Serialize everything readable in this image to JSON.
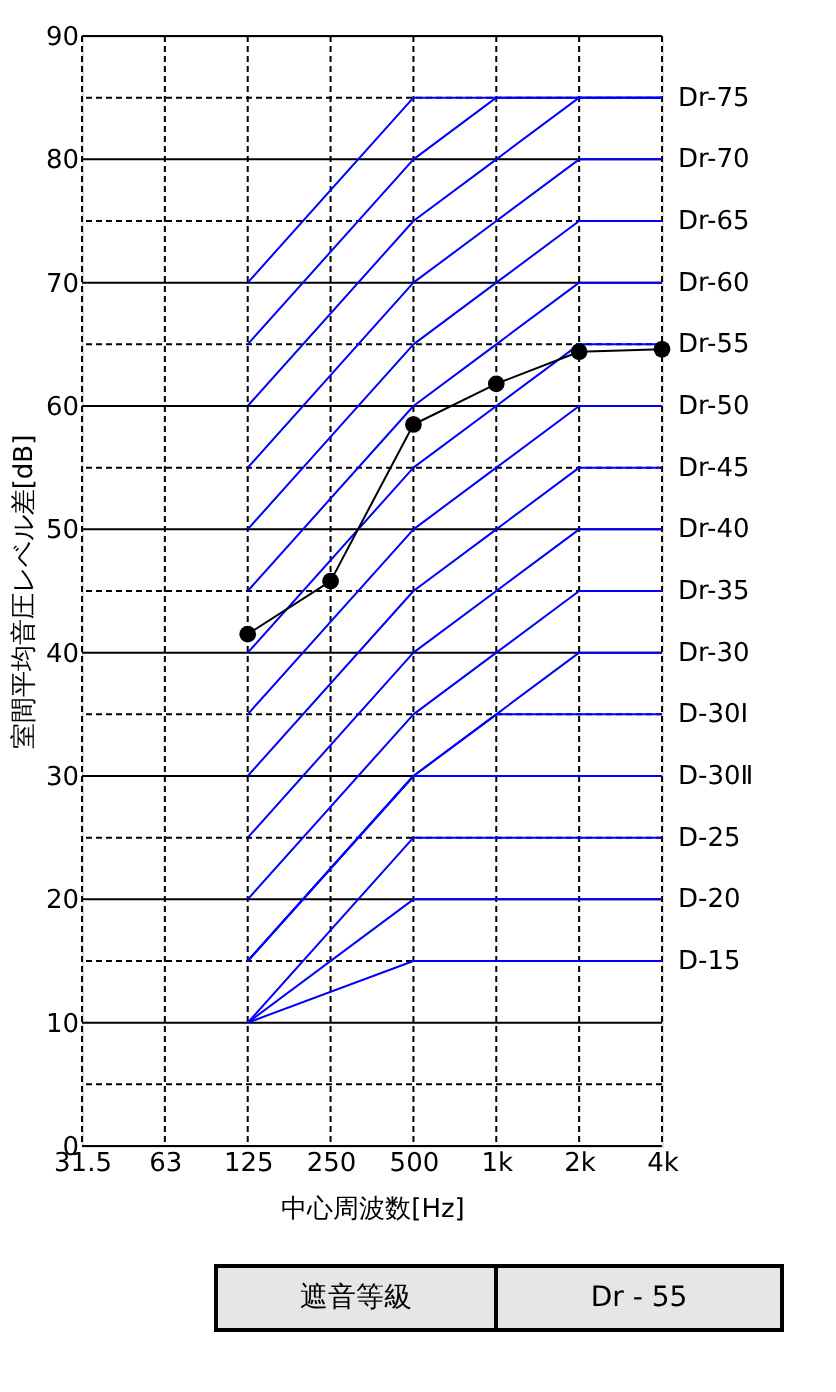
{
  "chart_data": {
    "type": "line",
    "xlabel": "中心周波数[Hz]",
    "ylabel": "室間平均音圧レベル差[dB]",
    "categories": [
      "31.5",
      "63",
      "125",
      "250",
      "500",
      "1k",
      "2k",
      "4k"
    ],
    "ylim": [
      0,
      90
    ],
    "yticks": [
      0,
      {
        "value": 5,
        "label": null
      },
      10,
      {
        "value": 15,
        "label": null
      },
      20,
      {
        "value": 25,
        "label": null
      },
      30,
      {
        "value": 35,
        "label": null
      },
      40,
      {
        "value": 45,
        "label": null
      },
      50,
      {
        "value": 55,
        "label": null
      },
      60,
      {
        "value": 65,
        "label": null
      },
      70,
      {
        "value": 75,
        "label": null
      },
      80,
      {
        "value": 85,
        "label": null
      },
      90
    ],
    "grid": true,
    "annotations": [
      "遮音等級",
      "Dr - 55"
    ],
    "series": [
      {
        "color": "#0000ff",
        "x": [
          "125",
          "500",
          "4k"
        ],
        "values": [
          70,
          85,
          85
        ]
      },
      {
        "color": "#0000ff",
        "x": [
          "125",
          "500",
          "1k",
          "4k"
        ],
        "values": [
          65,
          80,
          85,
          85
        ]
      },
      {
        "name": "Dr-75",
        "color": "#0000ff",
        "x": [
          "125",
          "500",
          "1k",
          "2k",
          "4k"
        ],
        "values": [
          60,
          75,
          80,
          85,
          85
        ]
      },
      {
        "name": "Dr-70",
        "color": "#0000ff",
        "x": [
          "125",
          "500",
          "1k",
          "2k",
          "4k"
        ],
        "values": [
          55,
          70,
          75,
          80,
          80
        ]
      },
      {
        "name": "Dr-65",
        "color": "#0000ff",
        "x": [
          "125",
          "500",
          "1k",
          "2k",
          "4k"
        ],
        "values": [
          50,
          65,
          70,
          75,
          75
        ]
      },
      {
        "name": "Dr-60",
        "color": "#0000ff",
        "x": [
          "125",
          "500",
          "1k",
          "2k",
          "4k"
        ],
        "values": [
          45,
          60,
          65,
          70,
          70
        ]
      },
      {
        "name": "Dr-55",
        "color": "#0000ff",
        "x": [
          "125",
          "500",
          "1k",
          "2k",
          "4k"
        ],
        "values": [
          40,
          55,
          60,
          65,
          65
        ]
      },
      {
        "name": "Dr-50",
        "color": "#0000ff",
        "x": [
          "125",
          "500",
          "1k",
          "2k",
          "4k"
        ],
        "values": [
          35,
          50,
          55,
          60,
          60
        ]
      },
      {
        "name": "Dr-45",
        "color": "#0000ff",
        "x": [
          "125",
          "500",
          "1k",
          "2k",
          "4k"
        ],
        "values": [
          30,
          45,
          50,
          55,
          55
        ]
      },
      {
        "name": "Dr-40",
        "color": "#0000ff",
        "x": [
          "125",
          "500",
          "1k",
          "2k",
          "4k"
        ],
        "values": [
          25,
          40,
          45,
          50,
          50
        ]
      },
      {
        "name": "Dr-35",
        "color": "#0000ff",
        "x": [
          "125",
          "500",
          "1k",
          "2k",
          "4k"
        ],
        "values": [
          20,
          35,
          40,
          45,
          45
        ]
      },
      {
        "name": "Dr-30",
        "color": "#0000ff",
        "x": [
          "125",
          "500",
          "1k",
          "2k",
          "4k"
        ],
        "values": [
          15,
          30,
          35,
          40,
          40
        ]
      },
      {
        "name": "D-30Ⅰ",
        "color": "#0000ff",
        "x": [
          "125",
          "500",
          "1k",
          "4k"
        ],
        "values": [
          15,
          30,
          35,
          35
        ]
      },
      {
        "name": "D-30Ⅱ",
        "color": "#0000ff",
        "x": [
          "125",
          "500",
          "4k"
        ],
        "values": [
          15,
          30,
          30
        ]
      },
      {
        "name": "D-25",
        "color": "#0000ff",
        "x": [
          "125",
          "500",
          "4k"
        ],
        "values": [
          10,
          25,
          25
        ]
      },
      {
        "name": "D-20",
        "color": "#0000ff",
        "x": [
          "125",
          "500",
          "4k"
        ],
        "values": [
          10,
          20,
          20
        ]
      },
      {
        "name": "D-15",
        "color": "#0000ff",
        "x": [
          "125",
          "500",
          "4k"
        ],
        "values": [
          10,
          15,
          15
        ]
      },
      {
        "color": "#000000",
        "marker": "circle",
        "x": [
          "125",
          "250",
          "500",
          "1k",
          "2k",
          "4k"
        ],
        "values": [
          41.5,
          45.8,
          58.5,
          61.8,
          64.4,
          64.6
        ]
      }
    ]
  }
}
